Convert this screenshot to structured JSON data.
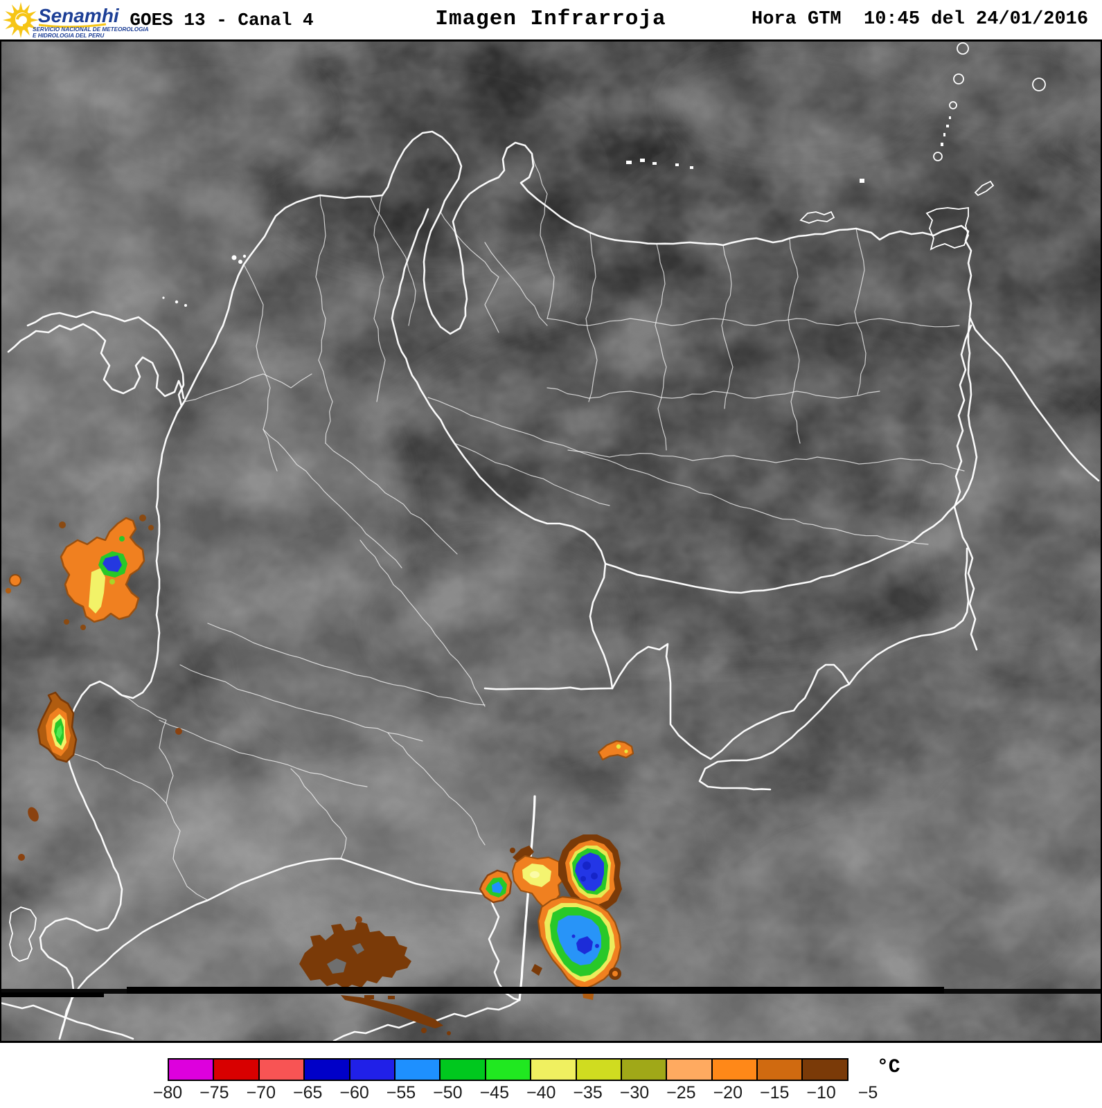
{
  "header": {
    "logo": {
      "brand": "Senamhi",
      "line1": "SERVICIO NACIONAL DE METEOROLOGIA",
      "line2": "E HIDROLOGIA DEL PERU",
      "brand_color": "#1d3f96",
      "sun_color": "#f6c515"
    },
    "product": "GOES 13 - Canal 4",
    "title": "Imagen Infrarroja",
    "datetime": "Hora GTM  10:45 del 24/01/2016"
  },
  "colorbar": {
    "unit": "°C",
    "ticks": [
      "−80",
      "−75",
      "−70",
      "−65",
      "−60",
      "−55",
      "−50",
      "−45",
      "−40",
      "−35",
      "−30",
      "−25",
      "−20",
      "−15",
      "−10",
      "−5"
    ],
    "colors": [
      "#dd00dd",
      "#d80000",
      "#f85454",
      "#0000c8",
      "#2020e8",
      "#1e90ff",
      "#00c81e",
      "#20e820",
      "#f0f060",
      "#d0dc20",
      "#a0a818",
      "#ffaa60",
      "#ff8818",
      "#d06a10",
      "#7a3a08"
    ]
  },
  "map": {
    "border_color": "#ffffff",
    "equator_color": "#000000",
    "background_color": "#484848"
  }
}
